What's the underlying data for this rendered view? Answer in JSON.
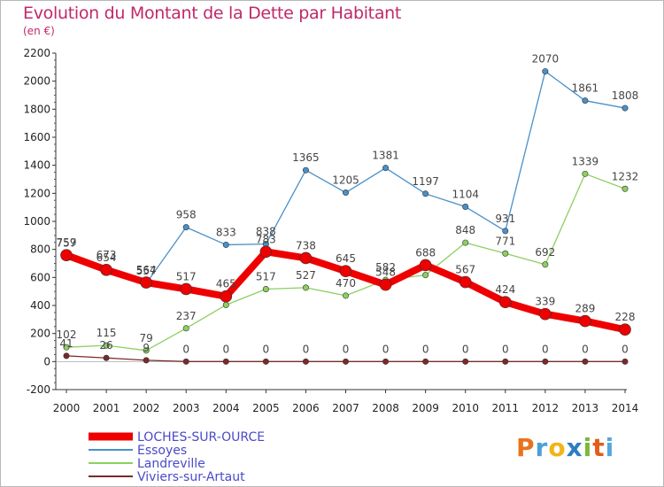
{
  "title": "Evolution du Montant de la Dette par Habitant",
  "subtitle": "(en €)",
  "logo": "Proxiti",
  "chart_data": {
    "type": "line",
    "title": "Evolution du Montant de la Dette par Habitant",
    "subtitle": "(en €)",
    "xlabel": "",
    "ylabel": "",
    "x": [
      2000,
      2001,
      2002,
      2003,
      2004,
      2005,
      2006,
      2007,
      2008,
      2009,
      2010,
      2011,
      2012,
      2013,
      2014
    ],
    "ylim": [
      -200,
      2200
    ],
    "yticks": [
      -200,
      0,
      200,
      400,
      600,
      800,
      1000,
      1200,
      1400,
      1600,
      1800,
      2000,
      2200
    ],
    "grid": false,
    "legend": "bottom-left",
    "series": [
      {
        "name": "Essoyes",
        "color": "#4a90c8",
        "width": 1.3,
        "marker": 3.2,
        "values": [
          757,
          673,
          557,
          958,
          833,
          838,
          1365,
          1205,
          1381,
          1197,
          1104,
          931,
          2070,
          1861,
          1808
        ],
        "labels": [
          "757",
          "673",
          "557",
          "958",
          "833",
          "838",
          "1365",
          "1205",
          "1381",
          "1197",
          "1104",
          "931",
          "2070",
          "1861",
          "1808"
        ]
      },
      {
        "name": "Landreville",
        "color": "#8cd060",
        "width": 1.3,
        "marker": 3.2,
        "values": [
          102,
          115,
          79,
          237,
          404,
          517,
          527,
          470,
          582,
          617,
          848,
          771,
          692,
          1339,
          1232
        ],
        "labels": [
          "102",
          "115",
          "79",
          "237",
          "",
          "517",
          "527",
          "470",
          "582",
          "",
          "848",
          "771",
          "692",
          "1339",
          "1232"
        ]
      },
      {
        "name": "Viviers-sur-Artaut",
        "color": "#7a2a2a",
        "width": 1.3,
        "marker": 3.2,
        "values": [
          41,
          26,
          9,
          0,
          0,
          0,
          0,
          0,
          0,
          0,
          0,
          0,
          0,
          0,
          0
        ],
        "labels": [
          "41",
          "26",
          "9",
          "0",
          "0",
          "0",
          "0",
          "0",
          "0",
          "0",
          "0",
          "0",
          "0",
          "0",
          "0"
        ]
      },
      {
        "name": "LOCHES-SUR-OURCE",
        "color": "#ee0000",
        "width": 8,
        "marker": 6.5,
        "values": [
          759,
          654,
          564,
          517,
          465,
          783,
          738,
          645,
          548,
          688,
          567,
          424,
          339,
          289,
          228
        ],
        "labels": [
          "759",
          "654",
          "564",
          "517",
          "465",
          "783",
          "738",
          "645",
          "548",
          "688",
          "567",
          "424",
          "339",
          "289",
          "228"
        ]
      }
    ]
  }
}
